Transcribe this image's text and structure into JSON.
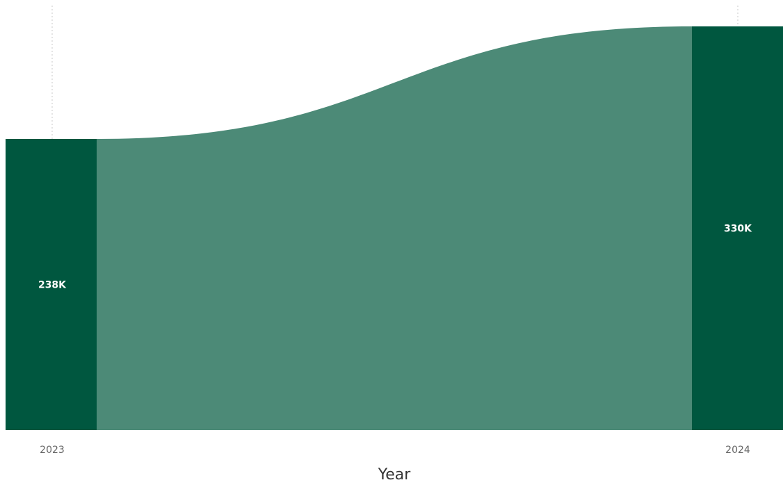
{
  "chart_data": {
    "type": "ribbon",
    "categories": [
      "2023",
      "2024"
    ],
    "values": [
      238000,
      330000
    ],
    "data_labels": [
      "238K",
      "330K"
    ],
    "title": "",
    "xlabel": "Year",
    "ylabel": "",
    "ylim": [
      0,
      330000
    ],
    "grid": "vertical-dotted",
    "legend": "none"
  },
  "colors": {
    "bar": "#00573f",
    "ribbon": "#4c8a77",
    "gridline": "#c8c8c8",
    "tick_text": "#666666",
    "axis_title": "#333333",
    "label_text": "#ffffff"
  }
}
